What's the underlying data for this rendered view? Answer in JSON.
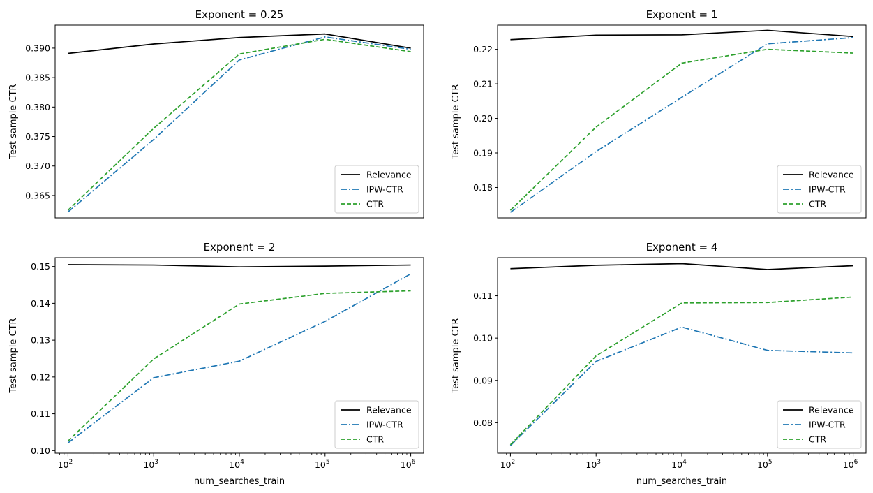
{
  "colors": {
    "Relevance": "#000000",
    "IPW-CTR": "#1f77b4",
    "CTR": "#2ca02c"
  },
  "chart_data": [
    {
      "type": "line",
      "title": "Exponent = 0.25",
      "xlabel": "",
      "ylabel": "Test sample CTR",
      "xscale": "log",
      "x": [
        100,
        1000,
        10000,
        100000,
        1000000
      ],
      "show_xticks": false,
      "yticks": [
        0.365,
        0.37,
        0.375,
        0.38,
        0.385,
        0.39
      ],
      "ytick_labels": [
        "0.365",
        "0.370",
        "0.375",
        "0.380",
        "0.385",
        "0.390"
      ],
      "ylim": [
        0.3612,
        0.3939
      ],
      "legend_loc": "lower-right",
      "series": [
        {
          "name": "Relevance",
          "style": "solid",
          "values": [
            0.3891,
            0.3907,
            0.3918,
            0.3924,
            0.39
          ]
        },
        {
          "name": "IPW-CTR",
          "style": "dashdot",
          "values": [
            0.3622,
            0.3745,
            0.388,
            0.3919,
            0.3898
          ]
        },
        {
          "name": "CTR",
          "style": "dashed",
          "values": [
            0.3625,
            0.3764,
            0.389,
            0.3915,
            0.3894
          ]
        }
      ]
    },
    {
      "type": "line",
      "title": "Exponent = 1",
      "xlabel": "",
      "ylabel": "Test sample CTR",
      "xscale": "log",
      "x": [
        100,
        1000,
        10000,
        100000,
        1000000
      ],
      "show_xticks": false,
      "yticks": [
        0.18,
        0.19,
        0.2,
        0.21,
        0.22
      ],
      "ytick_labels": [
        "0.18",
        "0.19",
        "0.20",
        "0.21",
        "0.22"
      ],
      "ylim": [
        0.1712,
        0.227
      ],
      "legend_loc": "lower-right",
      "series": [
        {
          "name": "Relevance",
          "style": "solid",
          "values": [
            0.2228,
            0.2241,
            0.2242,
            0.2255,
            0.2237
          ]
        },
        {
          "name": "IPW-CTR",
          "style": "dashdot",
          "values": [
            0.1728,
            0.1904,
            0.2061,
            0.2216,
            0.2234
          ]
        },
        {
          "name": "CTR",
          "style": "dashed",
          "values": [
            0.1734,
            0.1975,
            0.216,
            0.22,
            0.2189
          ]
        }
      ]
    },
    {
      "type": "line",
      "title": "Exponent = 2",
      "xlabel": "num_searches_train",
      "ylabel": "Test sample CTR",
      "xscale": "log",
      "x": [
        100,
        1000,
        10000,
        100000,
        1000000
      ],
      "show_xticks": true,
      "xtick_bases": [
        "10",
        "10",
        "10",
        "10",
        "10"
      ],
      "xtick_exponents": [
        "2",
        "3",
        "4",
        "5",
        "6"
      ],
      "yticks": [
        0.1,
        0.11,
        0.12,
        0.13,
        0.14,
        0.15
      ],
      "ytick_labels": [
        "0.10",
        "0.11",
        "0.12",
        "0.13",
        "0.14",
        "0.15"
      ],
      "ylim": [
        0.0993,
        0.1524
      ],
      "legend_loc": "lower-right",
      "series": [
        {
          "name": "Relevance",
          "style": "solid",
          "values": [
            0.1505,
            0.1504,
            0.1499,
            0.1501,
            0.1504
          ]
        },
        {
          "name": "IPW-CTR",
          "style": "dashdot",
          "values": [
            0.1021,
            0.1198,
            0.1243,
            0.1351,
            0.148
          ]
        },
        {
          "name": "CTR",
          "style": "dashed",
          "values": [
            0.1026,
            0.1249,
            0.1398,
            0.1427,
            0.1434
          ]
        }
      ]
    },
    {
      "type": "line",
      "title": "Exponent = 4",
      "xlabel": "num_searches_train",
      "ylabel": "Test sample CTR",
      "xscale": "log",
      "x": [
        100,
        1000,
        10000,
        100000,
        1000000
      ],
      "show_xticks": true,
      "xtick_bases": [
        "10",
        "10",
        "10",
        "10",
        "10"
      ],
      "xtick_exponents": [
        "2",
        "3",
        "4",
        "5",
        "6"
      ],
      "yticks": [
        0.08,
        0.09,
        0.1,
        0.11
      ],
      "ytick_labels": [
        "0.08",
        "0.09",
        "0.10",
        "0.11"
      ],
      "ylim": [
        0.0728,
        0.119
      ],
      "legend_loc": "lower-right",
      "series": [
        {
          "name": "Relevance",
          "style": "solid",
          "values": [
            0.1164,
            0.1172,
            0.1176,
            0.1162,
            0.1171
          ]
        },
        {
          "name": "IPW-CTR",
          "style": "dashdot",
          "values": [
            0.0746,
            0.0945,
            0.1026,
            0.0971,
            0.0965
          ]
        },
        {
          "name": "CTR",
          "style": "dashed",
          "values": [
            0.0748,
            0.0958,
            0.1083,
            0.1084,
            0.1097
          ]
        }
      ]
    }
  ]
}
